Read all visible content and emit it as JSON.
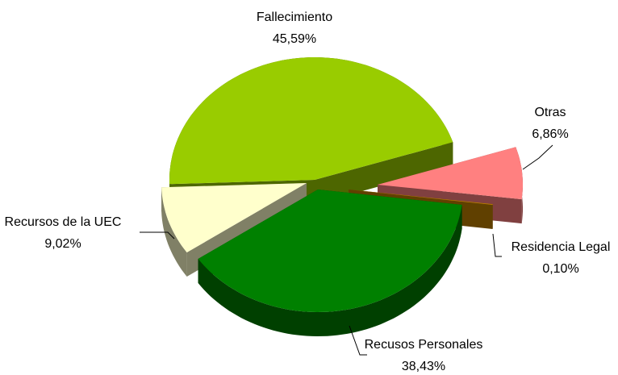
{
  "chart_data": {
    "type": "pie3d",
    "categories": [
      "Fallecimiento",
      "Otras",
      "Residencia Legal",
      "Recusos Personales",
      "Recursos de la UEC"
    ],
    "values": [
      45.59,
      6.86,
      0.1,
      38.43,
      9.02
    ],
    "value_labels": [
      "45,59%",
      "6,86%",
      "0,10%",
      "38,43%",
      "9,02%"
    ],
    "colors": [
      "#99cc00",
      "#ff8080",
      "#c08000",
      "#008000",
      "#ffffcc"
    ]
  }
}
